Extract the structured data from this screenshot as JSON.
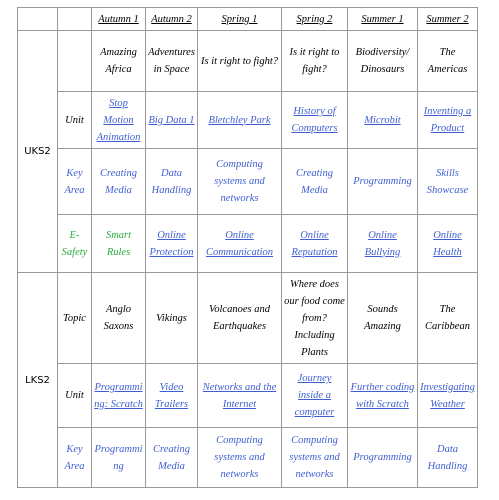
{
  "header": {
    "columns": [
      "Autumn 1",
      "Autumn 2",
      "Spring 1",
      "Spring 2",
      "Summer 1",
      "Summer 2"
    ]
  },
  "sections": [
    {
      "name": "UKS2",
      "rows": [
        {
          "cells": [
            "Amazing Africa",
            "Adventures in Space",
            "Is it right to fight?",
            "Is it right to fight?",
            "Biodiversity/ Dinosaurs",
            "The Americas"
          ]
        },
        {
          "label": "Unit",
          "cells": [
            "Stop Motion Animation",
            "Big Data 1",
            "Bletchley Park",
            "History of Computers",
            "Microbit",
            "Inventing a Product"
          ]
        },
        {
          "label": "Key Area",
          "cells": [
            "Creating Media",
            "Data Handling",
            "Computing systems and networks",
            "Creating Media",
            "Programming",
            "Skills Showcase"
          ]
        },
        {
          "label": "E-Safety",
          "cells": [
            "Smart Rules",
            "Online Protection",
            "Online Communication",
            "Online Reputation",
            "Online Bullying",
            "Online Health"
          ]
        }
      ]
    },
    {
      "name": "LKS2",
      "rows": [
        {
          "label": "Topic",
          "cells": [
            "Anglo Saxons",
            "Vikings",
            "Volcanoes and Earthquakes",
            "Where does our food come from? Including Plants",
            "Sounds Amazing",
            "The Caribbean"
          ]
        },
        {
          "label": "Unit",
          "cells": [
            "Programming: Scratch",
            "Video Trailers",
            "Networks and the Internet",
            "Journey inside a computer",
            "Further coding with Scratch",
            "Investigating Weather"
          ]
        },
        {
          "label": "Key Area",
          "cells": [
            "Programming",
            "Creating Media",
            "Computing systems and networks",
            "Computing systems and networks",
            "Programming",
            "Data Handling"
          ]
        }
      ]
    }
  ]
}
